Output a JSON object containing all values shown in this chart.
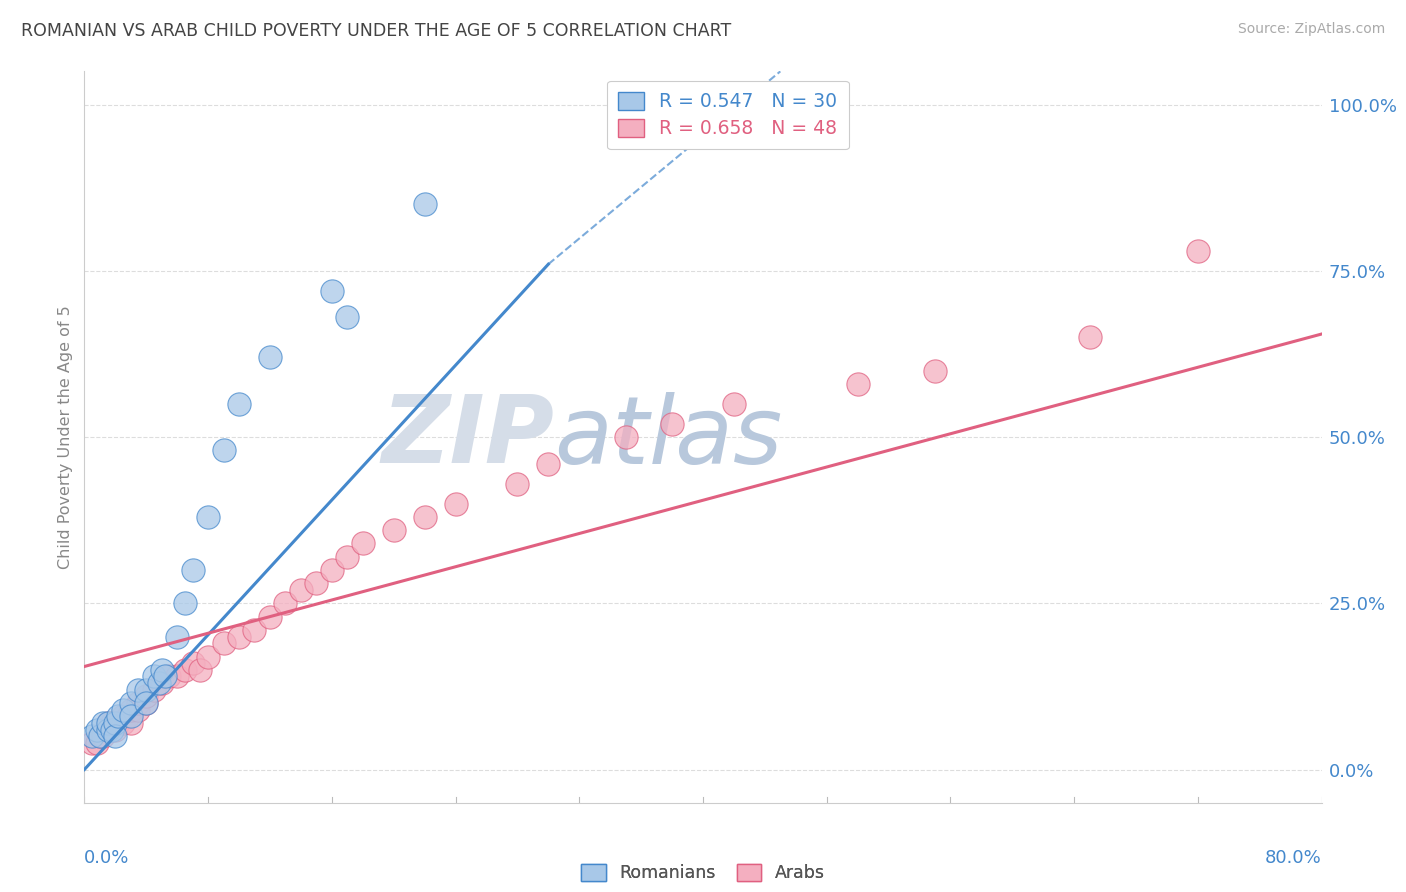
{
  "title": "ROMANIAN VS ARAB CHILD POVERTY UNDER THE AGE OF 5 CORRELATION CHART",
  "source": "Source: ZipAtlas.com",
  "ylabel": "Child Poverty Under the Age of 5",
  "ytick_labels": [
    "0.0%",
    "25.0%",
    "50.0%",
    "75.0%",
    "100.0%"
  ],
  "ytick_values": [
    0.0,
    0.25,
    0.5,
    0.75,
    1.0
  ],
  "xtick_labels": [
    "0.0%",
    "80.0%"
  ],
  "xmin": 0.0,
  "xmax": 0.8,
  "ymin": -0.05,
  "ymax": 1.05,
  "romanian_R": 0.547,
  "romanian_N": 30,
  "arab_R": 0.658,
  "arab_N": 48,
  "legend_text_romanian": "R = 0.547   N = 30",
  "legend_text_arab": "R = 0.658   N = 48",
  "romanian_color": "#a8c8e8",
  "arab_color": "#f4afc0",
  "romanian_line_color": "#4488cc",
  "arab_line_color": "#e06080",
  "watermark_zip": "ZIP",
  "watermark_atlas": "atlas",
  "watermark_color_zip": "#d0d8e8",
  "watermark_color_atlas": "#b8c8e0",
  "title_color": "#444444",
  "axis_label_color": "#4488cc",
  "grid_color": "#dddddd",
  "romanians_x": [
    0.005,
    0.008,
    0.01,
    0.012,
    0.015,
    0.015,
    0.018,
    0.02,
    0.02,
    0.022,
    0.025,
    0.03,
    0.03,
    0.035,
    0.04,
    0.04,
    0.045,
    0.048,
    0.05,
    0.052,
    0.06,
    0.065,
    0.07,
    0.08,
    0.09,
    0.1,
    0.12,
    0.16,
    0.17,
    0.22
  ],
  "romanians_y": [
    0.05,
    0.06,
    0.05,
    0.07,
    0.06,
    0.07,
    0.06,
    0.07,
    0.05,
    0.08,
    0.09,
    0.1,
    0.08,
    0.12,
    0.12,
    0.1,
    0.14,
    0.13,
    0.15,
    0.14,
    0.2,
    0.25,
    0.3,
    0.38,
    0.48,
    0.55,
    0.62,
    0.72,
    0.68,
    0.85
  ],
  "arabs_x": [
    0.005,
    0.008,
    0.01,
    0.012,
    0.015,
    0.015,
    0.018,
    0.02,
    0.022,
    0.025,
    0.025,
    0.028,
    0.03,
    0.03,
    0.035,
    0.035,
    0.04,
    0.04,
    0.045,
    0.05,
    0.055,
    0.06,
    0.065,
    0.07,
    0.075,
    0.08,
    0.09,
    0.1,
    0.11,
    0.12,
    0.13,
    0.14,
    0.15,
    0.16,
    0.17,
    0.18,
    0.2,
    0.22,
    0.24,
    0.28,
    0.3,
    0.35,
    0.38,
    0.42,
    0.5,
    0.55,
    0.65,
    0.72
  ],
  "arabs_y": [
    0.04,
    0.04,
    0.05,
    0.05,
    0.06,
    0.07,
    0.07,
    0.06,
    0.07,
    0.08,
    0.07,
    0.08,
    0.07,
    0.09,
    0.09,
    0.1,
    0.1,
    0.11,
    0.12,
    0.13,
    0.14,
    0.14,
    0.15,
    0.16,
    0.15,
    0.17,
    0.19,
    0.2,
    0.21,
    0.23,
    0.25,
    0.27,
    0.28,
    0.3,
    0.32,
    0.34,
    0.36,
    0.38,
    0.4,
    0.43,
    0.46,
    0.5,
    0.52,
    0.55,
    0.58,
    0.6,
    0.65,
    0.78
  ],
  "rom_line_x0": 0.0,
  "rom_line_y0": 0.0,
  "rom_line_x1": 0.3,
  "rom_line_y1": 0.76,
  "rom_line_dashed_x1": 0.45,
  "rom_line_dashed_y1": 1.05,
  "arab_line_x0": 0.0,
  "arab_line_y0": 0.155,
  "arab_line_x1": 0.8,
  "arab_line_y1": 0.655
}
